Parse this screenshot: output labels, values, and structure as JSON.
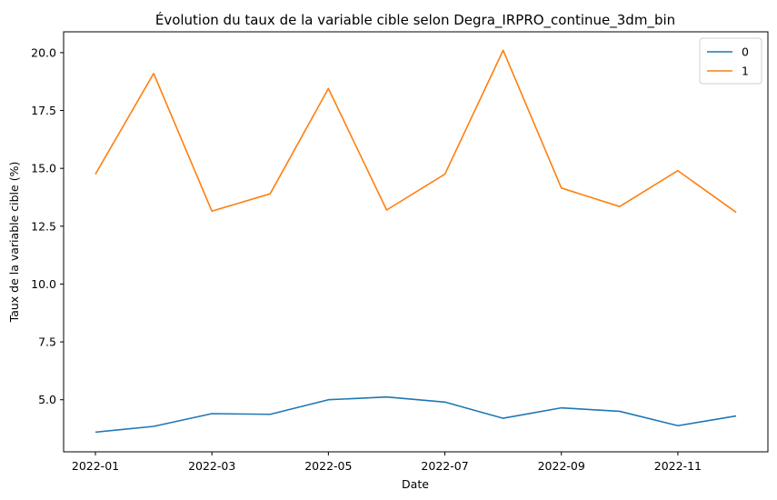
{
  "chart_data": {
    "type": "line",
    "title": "Évolution du taux de la variable cible selon Degra_IRPRO_continue_3dm_bin",
    "xlabel": "Date",
    "ylabel": "Taux de la variable cible (%)",
    "x": [
      "2022-01",
      "2022-02",
      "2022-03",
      "2022-04",
      "2022-05",
      "2022-06",
      "2022-07",
      "2022-08",
      "2022-09",
      "2022-10",
      "2022-11",
      "2022-12"
    ],
    "x_ticks": [
      "2022-01",
      "2022-03",
      "2022-05",
      "2022-07",
      "2022-09",
      "2022-11"
    ],
    "y_ticks": [
      "5.0",
      "7.5",
      "10.0",
      "12.5",
      "15.0",
      "17.5",
      "20.0"
    ],
    "ylim": [
      2.75,
      20.9
    ],
    "grid": false,
    "legend_position": "top-right",
    "series": [
      {
        "name": "0",
        "color": "#1f77b4",
        "values": [
          3.6,
          3.85,
          4.4,
          4.37,
          5.0,
          5.12,
          4.9,
          4.2,
          4.65,
          4.5,
          3.88,
          4.3
        ]
      },
      {
        "name": "1",
        "color": "#ff7f0e",
        "values": [
          14.75,
          19.1,
          13.15,
          13.9,
          18.45,
          13.2,
          14.75,
          20.1,
          14.15,
          13.35,
          14.9,
          13.1
        ]
      }
    ]
  }
}
